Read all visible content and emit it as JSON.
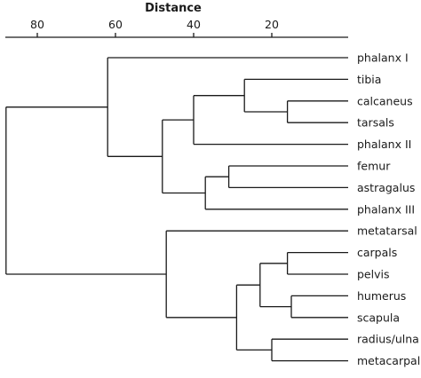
{
  "chart_data": {
    "type": "dendrogram",
    "axis": {
      "title": "Distance",
      "ticks": [
        80,
        60,
        40,
        20
      ],
      "range": [
        90,
        0
      ],
      "direction": "reversed"
    },
    "leaves": [
      "phalanx I",
      "tibia",
      "calcaneus",
      "tarsals",
      "phalanx II",
      "femur",
      "astragalus",
      "phalanx III",
      "metatarsal",
      "carpals",
      "pelvis",
      "humerus",
      "scapula",
      "radius/ulna",
      "metacarpal"
    ],
    "merges": [
      {
        "id": "calc_tars",
        "children": [
          "calcaneus",
          "tarsals"
        ],
        "distance": 16
      },
      {
        "id": "tibia_grp",
        "children": [
          "tibia",
          "calc_tars"
        ],
        "distance": 27
      },
      {
        "id": "phII_grp",
        "children": [
          "tibia_grp",
          "phalanx II"
        ],
        "distance": 40
      },
      {
        "id": "fem_ast",
        "children": [
          "femur",
          "astragalus"
        ],
        "distance": 31
      },
      {
        "id": "phIII_grp",
        "children": [
          "fem_ast",
          "phalanx III"
        ],
        "distance": 37
      },
      {
        "id": "hind_core",
        "children": [
          "phII_grp",
          "phIII_grp"
        ],
        "distance": 48
      },
      {
        "id": "hind_all",
        "children": [
          "phalanx I",
          "hind_core"
        ],
        "distance": 62
      },
      {
        "id": "carp_pelv",
        "children": [
          "carpals",
          "pelvis"
        ],
        "distance": 16
      },
      {
        "id": "hum_scap",
        "children": [
          "humerus",
          "scapula"
        ],
        "distance": 15
      },
      {
        "id": "fore_mid",
        "children": [
          "carp_pelv",
          "hum_scap"
        ],
        "distance": 23
      },
      {
        "id": "rad_meta",
        "children": [
          "radius/ulna",
          "metacarpal"
        ],
        "distance": 20
      },
      {
        "id": "fore_all",
        "children": [
          "fore_mid",
          "rad_meta"
        ],
        "distance": 29
      },
      {
        "id": "meta_grp",
        "children": [
          "metatarsal",
          "fore_all"
        ],
        "distance": 47
      },
      {
        "id": "root",
        "children": [
          "hind_all",
          "meta_grp"
        ],
        "distance": 88
      }
    ]
  }
}
